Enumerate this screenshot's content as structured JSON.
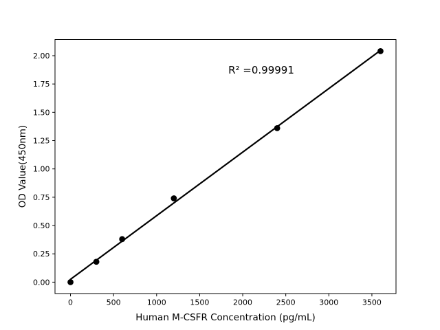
{
  "chart_data": {
    "type": "scatter",
    "title": "",
    "annotation": "R² =0.99991",
    "xlabel": "Human M-CSFR Concentration (pg/mL)",
    "ylabel": "OD Value(450nm)",
    "x": [
      0,
      300,
      600,
      1200,
      2400,
      3600
    ],
    "y": [
      0.0,
      0.18,
      0.38,
      0.74,
      1.36,
      2.04
    ],
    "xticks": [
      0,
      500,
      1000,
      1500,
      2000,
      2500,
      3000,
      3500
    ],
    "xtick_labels": [
      "0",
      "500",
      "1000",
      "1500",
      "2000",
      "2500",
      "3000",
      "3500"
    ],
    "yticks": [
      0.0,
      0.25,
      0.5,
      0.75,
      1.0,
      1.25,
      1.5,
      1.75,
      2.0
    ],
    "ytick_labels": [
      "0.00",
      "0.25",
      "0.50",
      "0.75",
      "1.00",
      "1.25",
      "1.50",
      "1.75",
      "2.00"
    ],
    "xlim": [
      -180,
      3780
    ],
    "ylim": [
      -0.102,
      2.142
    ],
    "fit": {
      "type": "linear",
      "r_squared": "0.99991"
    },
    "legend": "none",
    "grid": "off",
    "marker_color": "#000000",
    "line_color": "#000000",
    "axis_color": "#000000",
    "background_color": "#ffffff"
  }
}
